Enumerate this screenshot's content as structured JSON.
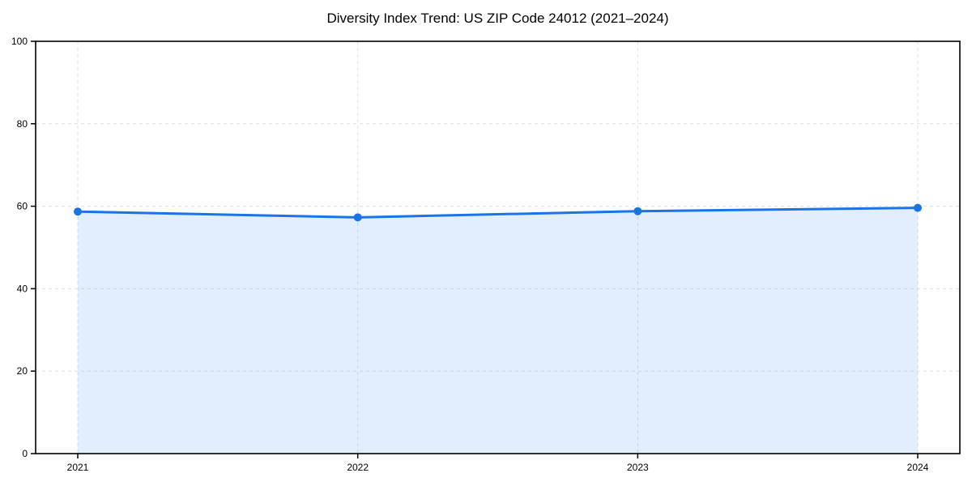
{
  "chart_data": {
    "type": "area",
    "title": "Diversity Index Trend: US ZIP Code 24012 (2021–2024)",
    "categories": [
      "2021",
      "2022",
      "2023",
      "2024"
    ],
    "x": [
      2021,
      2022,
      2023,
      2024
    ],
    "series": [
      {
        "name": "Diversity Index",
        "values": [
          58.7,
          57.3,
          58.8,
          59.6
        ]
      }
    ],
    "xlabel": "",
    "ylabel": "",
    "ylim": [
      0,
      100
    ],
    "yticks": [
      0,
      20,
      40,
      60,
      80,
      100
    ],
    "grid": "dashed, horizontal and vertical",
    "legend_position": "none",
    "marker": "circle"
  },
  "colors": {
    "line": "#1a73e8",
    "fill": "#1a73e8",
    "fill_opacity": "0.12",
    "grid": "#dedede",
    "axis": "#000000",
    "text": "#000000",
    "background": "#ffffff"
  }
}
